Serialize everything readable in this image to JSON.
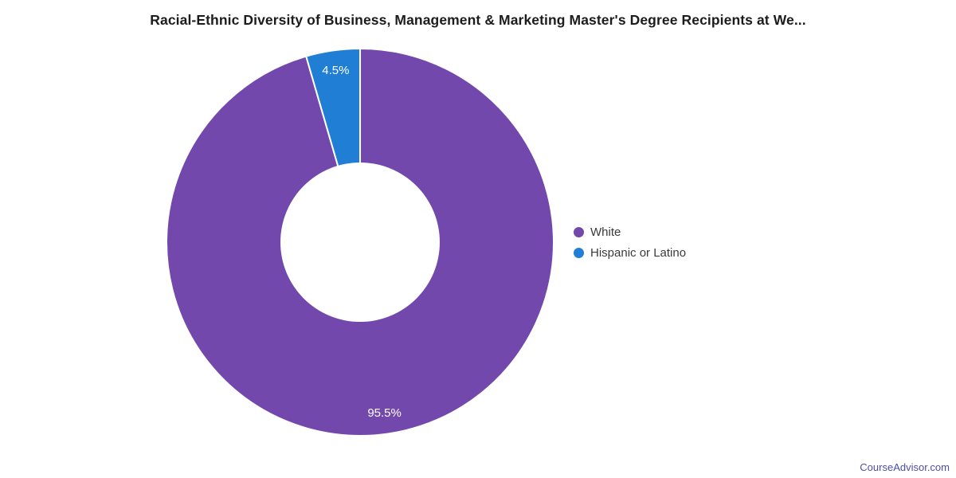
{
  "title": "Racial-Ethnic Diversity of Business, Management & Marketing Master's Degree Recipients at We...",
  "watermark": {
    "label": "CourseAdvisor.com",
    "color": "#4b4fa6"
  },
  "chart_data": {
    "type": "pie",
    "subtype": "donut",
    "title": "Racial-Ethnic Diversity of Business, Management & Marketing Master's Degree Recipients at We...",
    "start_angle_deg": 0,
    "direction": "clockwise",
    "inner_radius_ratio": 0.41,
    "legend_position": "right",
    "background": "#ffffff",
    "slice_separator_color": "#ffffff",
    "data_label_color": "#ffffff",
    "slices": [
      {
        "label": "White",
        "value": 95.5,
        "data_label": "95.5%",
        "color": "#7348ac"
      },
      {
        "label": "Hispanic or Latino",
        "value": 4.5,
        "data_label": "4.5%",
        "color": "#207fd4"
      }
    ]
  }
}
